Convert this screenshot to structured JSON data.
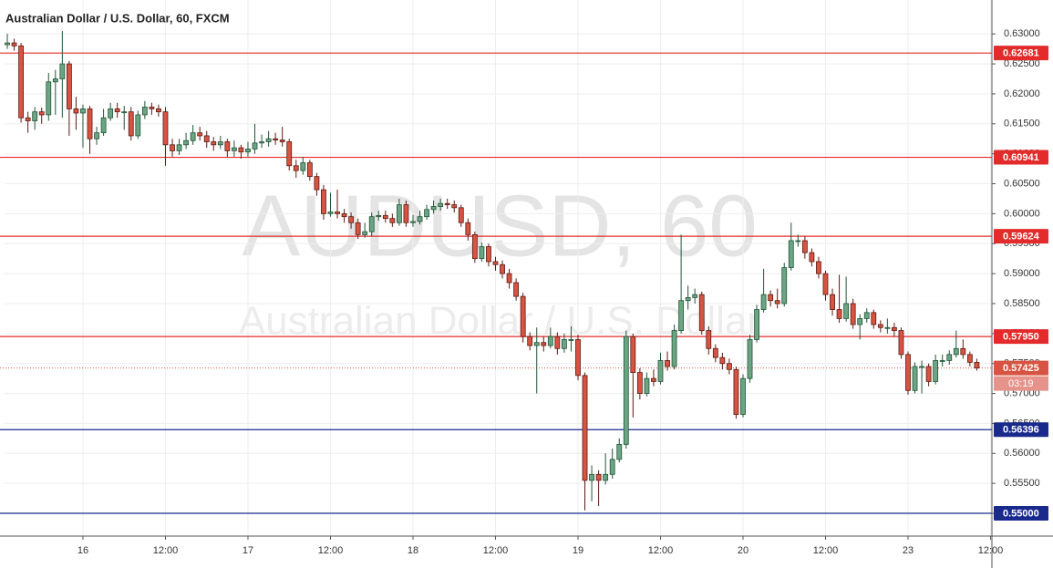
{
  "chart_data": {
    "type": "candlestick",
    "title": "Australian Dollar / U.S. Dollar, 60, FXCM",
    "watermark": "AUDUSD, 60",
    "watermark_subtitle": "Australian Dollar / U.S. Dollar",
    "up_color": "#6ba583",
    "down_color": "#d75442",
    "x": [
      0,
      1,
      2,
      3,
      4,
      5,
      6,
      7,
      8,
      9,
      10,
      11,
      12,
      13,
      14,
      15,
      16,
      17,
      18,
      19,
      20,
      21,
      22,
      23,
      24,
      25,
      26,
      27,
      28,
      29,
      30,
      31,
      32,
      33,
      34,
      35,
      36,
      37,
      38,
      39,
      40,
      41,
      42,
      43,
      44,
      45,
      46,
      47,
      48,
      49,
      50,
      51,
      52,
      53,
      54,
      55,
      56,
      57,
      58,
      59,
      60,
      61,
      62,
      63,
      64,
      65,
      66,
      67,
      68,
      69,
      70,
      71,
      72,
      73,
      74,
      75,
      76,
      77,
      78,
      79,
      80,
      81,
      82,
      83,
      84,
      85,
      86,
      87,
      88,
      89,
      90,
      91,
      92,
      93,
      94,
      95,
      96,
      97,
      98,
      99,
      100,
      101,
      102,
      103,
      104,
      105,
      106,
      107,
      108,
      109,
      110,
      111,
      112,
      113,
      114,
      115,
      116,
      117,
      118,
      119,
      120,
      121,
      122,
      123,
      124,
      125,
      126,
      127,
      128,
      129,
      130,
      131,
      132,
      133,
      134,
      135,
      136,
      137,
      138,
      139,
      140,
      141
    ],
    "open": [
      0.6282,
      0.6285,
      0.628,
      0.616,
      0.6155,
      0.617,
      0.6165,
      0.622,
      0.6225,
      0.625,
      0.6175,
      0.6168,
      0.6175,
      0.6125,
      0.6135,
      0.616,
      0.6175,
      0.617,
      0.617,
      0.613,
      0.6165,
      0.6178,
      0.6175,
      0.617,
      0.6115,
      0.6105,
      0.6115,
      0.6122,
      0.6135,
      0.613,
      0.612,
      0.6115,
      0.612,
      0.6105,
      0.611,
      0.6103,
      0.6108,
      0.6118,
      0.612,
      0.6125,
      0.6123,
      0.612,
      0.608,
      0.6072,
      0.6085,
      0.6062,
      0.604,
      0.6,
      0.6003,
      0.6,
      0.5995,
      0.5985,
      0.5965,
      0.597,
      0.5995,
      0.5997,
      0.5992,
      0.5985,
      0.6015,
      0.5985,
      0.5987,
      0.5995,
      0.6007,
      0.6012,
      0.6017,
      0.6015,
      0.601,
      0.5985,
      0.5965,
      0.5925,
      0.5945,
      0.592,
      0.5915,
      0.59,
      0.5885,
      0.5862,
      0.5795,
      0.578,
      0.5785,
      0.578,
      0.5795,
      0.5775,
      0.579,
      0.579,
      0.573,
      0.5555,
      0.5565,
      0.5555,
      0.5565,
      0.559,
      0.5615,
      0.5795,
      0.5735,
      0.57,
      0.5725,
      0.572,
      0.5755,
      0.5745,
      0.5805,
      0.5855,
      0.586,
      0.5865,
      0.5805,
      0.5775,
      0.576,
      0.575,
      0.574,
      0.5665,
      0.5725,
      0.579,
      0.584,
      0.5865,
      0.5855,
      0.585,
      0.591,
      0.5955,
      0.5955,
      0.5935,
      0.592,
      0.59,
      0.5865,
      0.584,
      0.5825,
      0.585,
      0.5815,
      0.5825,
      0.5835,
      0.5815,
      0.581,
      0.581,
      0.5805,
      0.5765,
      0.5705,
      0.5745,
      0.5745,
      0.572,
      0.5755,
      0.5755,
      0.5765,
      0.5775,
      0.5765,
      0.5752
    ],
    "high": [
      0.63,
      0.6292,
      0.6285,
      0.617,
      0.6178,
      0.6177,
      0.6235,
      0.624,
      0.6305,
      0.6255,
      0.6195,
      0.6182,
      0.618,
      0.6145,
      0.6175,
      0.6185,
      0.6185,
      0.618,
      0.6178,
      0.6172,
      0.6188,
      0.6185,
      0.6182,
      0.6178,
      0.6125,
      0.6125,
      0.6135,
      0.6148,
      0.6145,
      0.6138,
      0.6128,
      0.613,
      0.6125,
      0.6122,
      0.6115,
      0.612,
      0.615,
      0.6132,
      0.6138,
      0.6135,
      0.6145,
      0.6125,
      0.609,
      0.6095,
      0.609,
      0.6068,
      0.6048,
      0.6035,
      0.604,
      0.6008,
      0.6002,
      0.5992,
      0.5985,
      0.6002,
      0.6005,
      0.6005,
      0.6,
      0.6025,
      0.6022,
      0.5998,
      0.6005,
      0.6015,
      0.6022,
      0.6025,
      0.6025,
      0.6022,
      0.6015,
      0.5992,
      0.597,
      0.5952,
      0.595,
      0.5928,
      0.5922,
      0.5908,
      0.5892,
      0.5868,
      0.5802,
      0.581,
      0.5795,
      0.581,
      0.5802,
      0.58,
      0.5812,
      0.5798,
      0.5735,
      0.558,
      0.5572,
      0.56,
      0.5608,
      0.5625,
      0.5805,
      0.58,
      0.5742,
      0.5735,
      0.574,
      0.5768,
      0.577,
      0.5815,
      0.5965,
      0.588,
      0.5875,
      0.587,
      0.5812,
      0.5782,
      0.5768,
      0.5758,
      0.5745,
      0.5732,
      0.5798,
      0.5848,
      0.5908,
      0.5872,
      0.5875,
      0.5918,
      0.5985,
      0.5965,
      0.5962,
      0.5942,
      0.5928,
      0.5905,
      0.5875,
      0.5898,
      0.5895,
      0.5858,
      0.5832,
      0.5842,
      0.584,
      0.5822,
      0.5825,
      0.5818,
      0.581,
      0.577,
      0.5752,
      0.5755,
      0.575,
      0.5765,
      0.5765,
      0.5772,
      0.5805,
      0.579,
      0.577,
      0.5758
    ],
    "low": [
      0.6275,
      0.6272,
      0.6152,
      0.6135,
      0.614,
      0.615,
      0.6155,
      0.6165,
      0.616,
      0.613,
      0.614,
      0.611,
      0.61,
      0.6115,
      0.613,
      0.6155,
      0.616,
      0.614,
      0.6122,
      0.6125,
      0.6158,
      0.6165,
      0.6162,
      0.608,
      0.6095,
      0.6098,
      0.6108,
      0.6115,
      0.6122,
      0.611,
      0.6105,
      0.6108,
      0.6095,
      0.6095,
      0.6092,
      0.6095,
      0.61,
      0.611,
      0.6112,
      0.6115,
      0.6112,
      0.6072,
      0.606,
      0.6065,
      0.6055,
      0.603,
      0.599,
      0.5995,
      0.5992,
      0.5985,
      0.5975,
      0.5958,
      0.596,
      0.5962,
      0.5988,
      0.5985,
      0.5978,
      0.598,
      0.5978,
      0.5978,
      0.5982,
      0.599,
      0.6,
      0.6005,
      0.6008,
      0.6002,
      0.5978,
      0.5955,
      0.5918,
      0.592,
      0.5912,
      0.5905,
      0.5892,
      0.5875,
      0.5855,
      0.5785,
      0.5772,
      0.57,
      0.577,
      0.5775,
      0.5765,
      0.5768,
      0.577,
      0.5722,
      0.5505,
      0.552,
      0.5512,
      0.5548,
      0.5558,
      0.5585,
      0.5608,
      0.566,
      0.569,
      0.5695,
      0.5712,
      0.5715,
      0.5738,
      0.574,
      0.58,
      0.584,
      0.585,
      0.5798,
      0.5765,
      0.5752,
      0.574,
      0.5732,
      0.5658,
      0.566,
      0.5718,
      0.5785,
      0.5835,
      0.5845,
      0.5842,
      0.5845,
      0.5905,
      0.5945,
      0.5925,
      0.5912,
      0.5892,
      0.5855,
      0.583,
      0.5818,
      0.582,
      0.5808,
      0.579,
      0.5818,
      0.5808,
      0.5802,
      0.58,
      0.5795,
      0.5758,
      0.5698,
      0.57,
      0.57,
      0.5712,
      0.5715,
      0.5745,
      0.5748,
      0.576,
      0.5758,
      0.5745,
      0.5738
    ],
    "close": [
      0.6285,
      0.628,
      0.616,
      0.6155,
      0.617,
      0.6165,
      0.622,
      0.6225,
      0.625,
      0.6175,
      0.6168,
      0.6175,
      0.6125,
      0.6135,
      0.616,
      0.6175,
      0.617,
      0.617,
      0.613,
      0.6165,
      0.6178,
      0.6175,
      0.617,
      0.6115,
      0.6105,
      0.6115,
      0.6122,
      0.6135,
      0.613,
      0.612,
      0.6115,
      0.612,
      0.6105,
      0.611,
      0.6103,
      0.6108,
      0.6118,
      0.612,
      0.6125,
      0.6123,
      0.612,
      0.608,
      0.6072,
      0.6085,
      0.6062,
      0.604,
      0.6,
      0.6003,
      0.6,
      0.5995,
      0.5985,
      0.5965,
      0.597,
      0.5995,
      0.5997,
      0.5992,
      0.5985,
      0.6015,
      0.5985,
      0.5987,
      0.5995,
      0.6007,
      0.6012,
      0.6017,
      0.6015,
      0.601,
      0.5985,
      0.5965,
      0.5925,
      0.5945,
      0.592,
      0.5915,
      0.59,
      0.5885,
      0.5862,
      0.5795,
      0.578,
      0.5785,
      0.578,
      0.5795,
      0.5775,
      0.579,
      0.579,
      0.573,
      0.5555,
      0.5565,
      0.5555,
      0.5565,
      0.559,
      0.5615,
      0.5795,
      0.5735,
      0.57,
      0.5725,
      0.572,
      0.5755,
      0.5745,
      0.5805,
      0.5855,
      0.586,
      0.5865,
      0.5805,
      0.5775,
      0.576,
      0.575,
      0.574,
      0.5665,
      0.5725,
      0.579,
      0.584,
      0.5865,
      0.5855,
      0.585,
      0.591,
      0.5955,
      0.5955,
      0.5935,
      0.592,
      0.59,
      0.5865,
      0.584,
      0.5825,
      0.585,
      0.5815,
      0.5825,
      0.5835,
      0.5815,
      0.581,
      0.581,
      0.5805,
      0.5765,
      0.5705,
      0.5745,
      0.5745,
      0.572,
      0.5755,
      0.5755,
      0.5765,
      0.5775,
      0.5765,
      0.5752,
      0.57425
    ],
    "xlim": [
      -0.4,
      143.2
    ],
    "xticks": [
      {
        "value": 11,
        "label": "16"
      },
      {
        "value": 23,
        "label": "12:00"
      },
      {
        "value": 35,
        "label": "17"
      },
      {
        "value": 47,
        "label": "12:00"
      },
      {
        "value": 59,
        "label": "18"
      },
      {
        "value": 71,
        "label": "12:00"
      },
      {
        "value": 83,
        "label": "19"
      },
      {
        "value": 95,
        "label": "12:00"
      },
      {
        "value": 107,
        "label": "20"
      },
      {
        "value": 119,
        "label": "12:00"
      },
      {
        "value": 131,
        "label": "23"
      },
      {
        "value": 143,
        "label": "12:00"
      }
    ],
    "ylim": [
      0.5462,
      0.6349
    ],
    "yticks": [
      {
        "value": 0.63,
        "label": "0.63000"
      },
      {
        "value": 0.625,
        "label": "0.62500"
      },
      {
        "value": 0.62,
        "label": "0.62000"
      },
      {
        "value": 0.615,
        "label": "0.61500"
      },
      {
        "value": 0.61,
        "label": "0.61000"
      },
      {
        "value": 0.605,
        "label": "0.60500"
      },
      {
        "value": 0.6,
        "label": "0.60000"
      },
      {
        "value": 0.595,
        "label": "0.59500"
      },
      {
        "value": 0.59,
        "label": "0.59000"
      },
      {
        "value": 0.585,
        "label": "0.58500"
      },
      {
        "value": 0.58,
        "label": "0.58000"
      },
      {
        "value": 0.575,
        "label": "0.57500"
      },
      {
        "value": 0.57,
        "label": "0.57000"
      },
      {
        "value": 0.565,
        "label": "0.56500"
      },
      {
        "value": 0.56,
        "label": "0.56000"
      },
      {
        "value": 0.555,
        "label": "0.55500"
      },
      {
        "value": 0.55,
        "label": "0.55000"
      }
    ],
    "grid": true,
    "levels": [
      {
        "value": 0.62681,
        "label": "0.62681",
        "color": "#e32b2b"
      },
      {
        "value": 0.60941,
        "label": "0.60941",
        "color": "#e32b2b"
      },
      {
        "value": 0.59624,
        "label": "0.59624",
        "color": "#e32b2b"
      },
      {
        "value": 0.5795,
        "label": "0.57950",
        "color": "#e32b2b"
      },
      {
        "value": 0.56396,
        "label": "0.56396",
        "color": "#1a2a8c"
      },
      {
        "value": 0.55,
        "label": "0.55000",
        "color": "#1a2a8c"
      }
    ],
    "last_price": {
      "value": 0.57425,
      "label": "0.57425",
      "color": "#d75442"
    },
    "countdown": "03:19"
  }
}
